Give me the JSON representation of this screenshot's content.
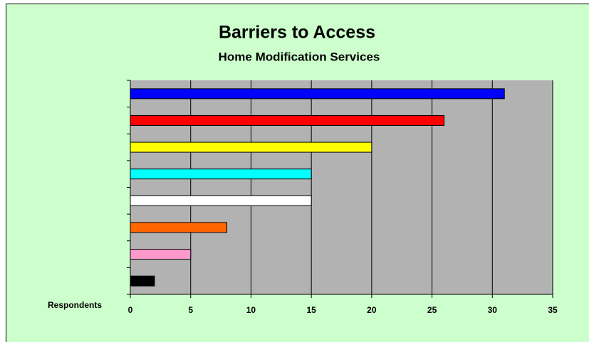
{
  "chart_data": {
    "type": "bar",
    "orientation": "horizontal",
    "title": "Barriers to Access",
    "subtitle": "Home Modification Services",
    "x_label": "Respondents",
    "categories": [
      null,
      null,
      null,
      null,
      null,
      null,
      null,
      null
    ],
    "values": [
      31,
      26,
      20,
      15,
      15,
      8,
      5,
      2
    ],
    "colors": [
      "#0000ff",
      "#ff0000",
      "#ffff00",
      "#00ffff",
      "#ffffff",
      "#ff6600",
      "#ff99cc",
      "#000000"
    ],
    "xlim": [
      0,
      35
    ],
    "xticks": [
      0,
      5,
      10,
      15,
      20,
      25,
      30,
      35
    ],
    "grid": true,
    "plot_background": "#b2b2b2",
    "background": "#ccffcc"
  }
}
